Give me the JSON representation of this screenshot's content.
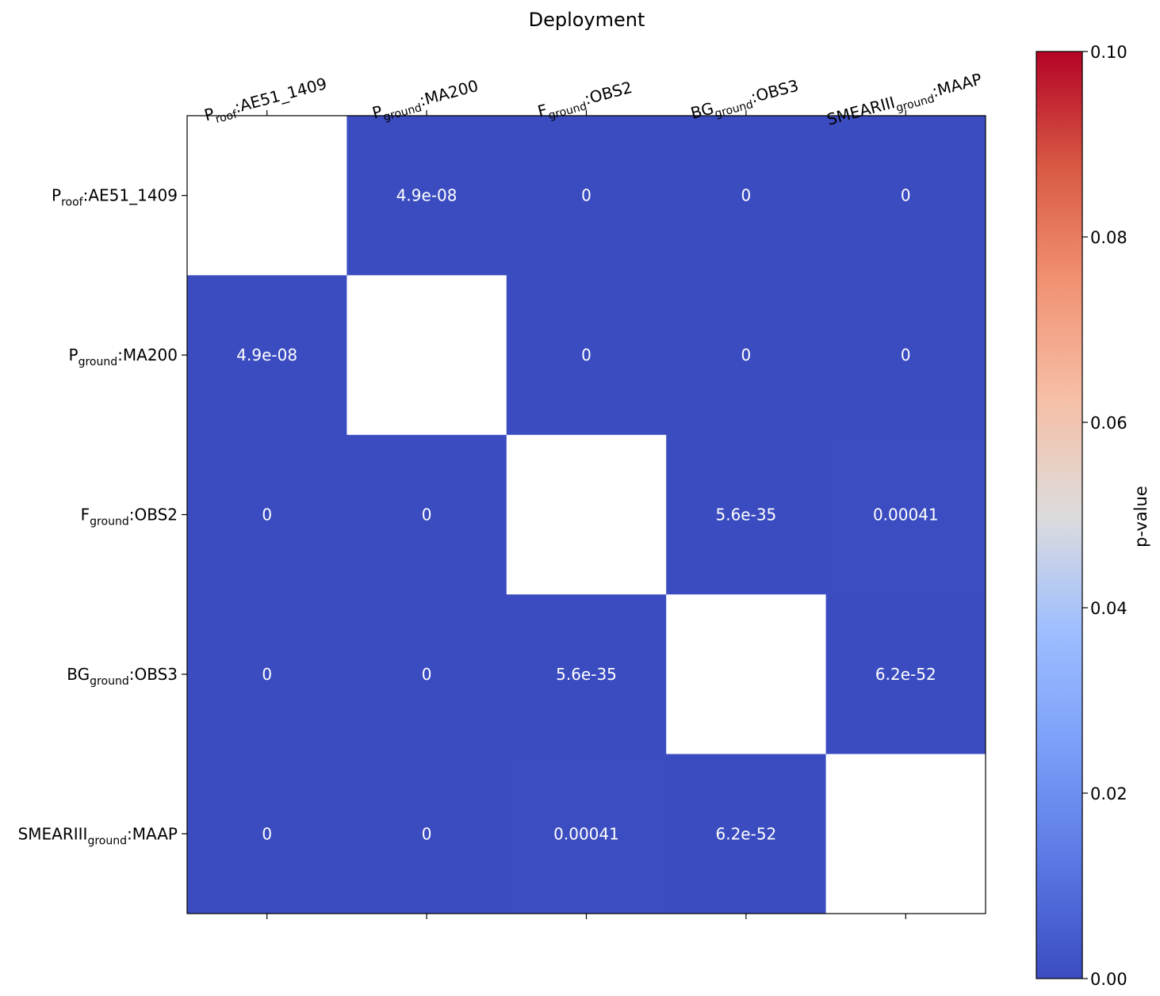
{
  "chart_data": {
    "type": "heatmap",
    "title": "Deployment",
    "colorbar_label": "p-value",
    "colormap": "coolwarm",
    "vmin": 0,
    "vmax": 0.1,
    "colorbar_ticks": [
      "0.00",
      "0.02",
      "0.04",
      "0.06",
      "0.08",
      "0.10"
    ],
    "colorbar_tick_values": [
      0,
      0.02,
      0.04,
      0.06,
      0.08,
      0.1
    ],
    "nan_color": "#ffffff",
    "categories": [
      {
        "base": "P",
        "sub": "roof",
        "suffix": ":AE51_1409"
      },
      {
        "base": "P",
        "sub": "ground",
        "suffix": ":MA200"
      },
      {
        "base": "F",
        "sub": "ground",
        "suffix": ":OBS2"
      },
      {
        "base": "BG",
        "sub": "ground",
        "suffix": ":OBS3"
      },
      {
        "base": "SMEARIII",
        "sub": "ground",
        "suffix": ":MAAP"
      }
    ],
    "cell_labels": [
      [
        "",
        "4.9e-08",
        "0",
        "0",
        "0"
      ],
      [
        "4.9e-08",
        "",
        "0",
        "0",
        "0"
      ],
      [
        "0",
        "0",
        "",
        "5.6e-35",
        "0.00041"
      ],
      [
        "0",
        "0",
        "5.6e-35",
        "",
        "6.2e-52"
      ],
      [
        "0",
        "0",
        "0.00041",
        "6.2e-52",
        ""
      ]
    ],
    "values": [
      [
        null,
        4.9e-08,
        0,
        0,
        0
      ],
      [
        4.9e-08,
        null,
        0,
        0,
        0
      ],
      [
        0,
        0,
        null,
        5.6e-35,
        0.00041
      ],
      [
        0,
        0,
        5.6e-35,
        null,
        6.2e-52
      ],
      [
        0,
        0,
        0.00041,
        6.2e-52,
        null
      ]
    ],
    "xaxis_position": "top",
    "grid": false
  },
  "colors": {
    "cell_low": "#3b4cc0",
    "annotation_text": "#ffffff",
    "axis_text": "#000000"
  }
}
